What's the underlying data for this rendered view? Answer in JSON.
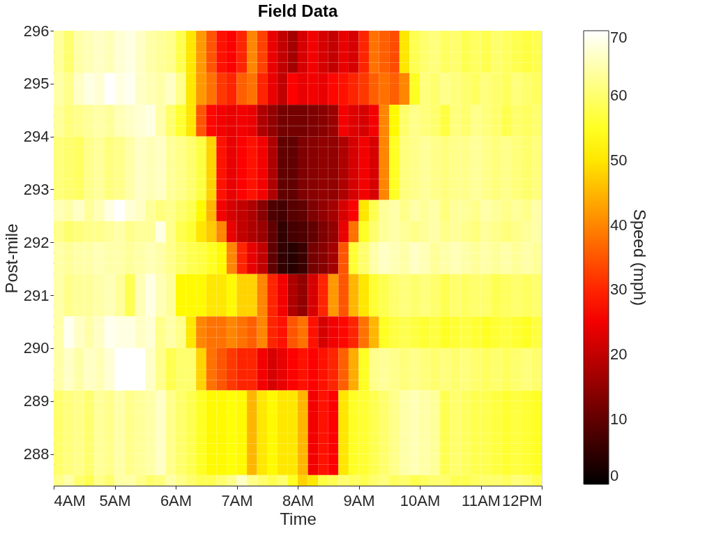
{
  "chart_data": {
    "type": "heatmap",
    "title": "Field Data",
    "xlabel": "Time",
    "ylabel": "Post-mile",
    "clabel": "Speed (mph)",
    "cells": [
      [
        63,
        60,
        64,
        65,
        66,
        65,
        67,
        68,
        66,
        64,
        63,
        62,
        58,
        50,
        42,
        35,
        28,
        26,
        30,
        40,
        33,
        24,
        20,
        17,
        22,
        25,
        22,
        20,
        24,
        22,
        30,
        38,
        36,
        34,
        50,
        58,
        60,
        61,
        59,
        60,
        58,
        59,
        58,
        60,
        59,
        58,
        57,
        58
      ],
      [
        63,
        60,
        64,
        65,
        66,
        65,
        67,
        68,
        66,
        64,
        63,
        62,
        58,
        50,
        42,
        35,
        28,
        26,
        30,
        40,
        33,
        24,
        20,
        17,
        22,
        25,
        22,
        20,
        24,
        22,
        30,
        38,
        36,
        34,
        50,
        58,
        60,
        61,
        59,
        60,
        58,
        59,
        58,
        60,
        59,
        58,
        57,
        58
      ],
      [
        63,
        60,
        64,
        65,
        66,
        65,
        67,
        68,
        66,
        64,
        63,
        62,
        58,
        50,
        42,
        35,
        28,
        26,
        30,
        40,
        33,
        24,
        20,
        17,
        22,
        25,
        22,
        20,
        24,
        22,
        30,
        38,
        36,
        34,
        50,
        58,
        60,
        61,
        59,
        60,
        58,
        59,
        58,
        60,
        59,
        58,
        57,
        58
      ],
      [
        63,
        60,
        64,
        65,
        66,
        65,
        67,
        68,
        66,
        64,
        63,
        62,
        58,
        50,
        42,
        35,
        28,
        26,
        30,
        40,
        33,
        24,
        20,
        17,
        22,
        25,
        22,
        20,
        24,
        22,
        30,
        38,
        36,
        34,
        50,
        58,
        60,
        61,
        59,
        60,
        58,
        59,
        58,
        60,
        59,
        58,
        57,
        58
      ],
      [
        64,
        62,
        66,
        68,
        67,
        70,
        68,
        69,
        66,
        65,
        64,
        66,
        62,
        50,
        42,
        38,
        32,
        30,
        36,
        38,
        30,
        24,
        20,
        26,
        24,
        25,
        24,
        27,
        28,
        30,
        32,
        36,
        38,
        36,
        40,
        55,
        61,
        60,
        62,
        61,
        60,
        59,
        61,
        60,
        59,
        61,
        60,
        59
      ],
      [
        64,
        62,
        66,
        68,
        67,
        70,
        68,
        69,
        66,
        65,
        64,
        66,
        62,
        50,
        42,
        38,
        32,
        30,
        36,
        38,
        30,
        24,
        20,
        26,
        24,
        25,
        24,
        27,
        28,
        30,
        32,
        36,
        38,
        36,
        40,
        55,
        61,
        60,
        62,
        61,
        60,
        59,
        61,
        60,
        59,
        61,
        60,
        59
      ],
      [
        64,
        62,
        66,
        68,
        67,
        70,
        68,
        69,
        66,
        65,
        64,
        66,
        62,
        50,
        42,
        38,
        32,
        30,
        36,
        38,
        30,
        24,
        20,
        26,
        24,
        25,
        24,
        27,
        28,
        30,
        32,
        36,
        38,
        36,
        40,
        55,
        61,
        60,
        62,
        61,
        60,
        59,
        61,
        60,
        59,
        61,
        60,
        59
      ],
      [
        63,
        61,
        62,
        63,
        64,
        63,
        65,
        66,
        67,
        68,
        64,
        60,
        56,
        50,
        35,
        27,
        25,
        24,
        25,
        24,
        18,
        15,
        12,
        12,
        12,
        13,
        14,
        16,
        25,
        23,
        22,
        25,
        40,
        52,
        60,
        62,
        61,
        60,
        57,
        61,
        60,
        62,
        61,
        60,
        58,
        60,
        59,
        60
      ],
      [
        63,
        61,
        62,
        63,
        64,
        63,
        65,
        66,
        67,
        68,
        64,
        60,
        56,
        50,
        35,
        27,
        25,
        24,
        25,
        24,
        18,
        15,
        12,
        12,
        12,
        13,
        14,
        16,
        25,
        23,
        22,
        25,
        40,
        52,
        60,
        62,
        61,
        60,
        57,
        61,
        60,
        62,
        61,
        60,
        58,
        60,
        59,
        60
      ],
      [
        63,
        61,
        62,
        63,
        64,
        63,
        65,
        66,
        67,
        68,
        64,
        60,
        56,
        50,
        35,
        27,
        25,
        24,
        25,
        24,
        18,
        15,
        12,
        12,
        12,
        13,
        14,
        16,
        25,
        23,
        22,
        25,
        40,
        52,
        60,
        62,
        61,
        60,
        57,
        61,
        60,
        62,
        61,
        60,
        58,
        60,
        59,
        60
      ],
      [
        61,
        60,
        59,
        62,
        63,
        61,
        62,
        64,
        66,
        65,
        66,
        63,
        62,
        60,
        57,
        48,
        28,
        24,
        26,
        28,
        25,
        18,
        10,
        10,
        13,
        14,
        15,
        15,
        18,
        22,
        25,
        22,
        40,
        55,
        61,
        62,
        63,
        62,
        61,
        62,
        62,
        63,
        62,
        61,
        62,
        61,
        60,
        61
      ],
      [
        61,
        60,
        59,
        62,
        63,
        61,
        62,
        64,
        66,
        65,
        66,
        63,
        62,
        60,
        57,
        48,
        28,
        24,
        26,
        28,
        25,
        18,
        10,
        10,
        13,
        14,
        15,
        15,
        18,
        22,
        25,
        22,
        40,
        55,
        61,
        62,
        63,
        62,
        61,
        62,
        62,
        63,
        62,
        61,
        62,
        61,
        60,
        61
      ],
      [
        61,
        60,
        59,
        62,
        63,
        61,
        62,
        64,
        66,
        65,
        66,
        63,
        62,
        60,
        57,
        48,
        28,
        24,
        26,
        28,
        25,
        18,
        10,
        10,
        13,
        14,
        15,
        15,
        18,
        22,
        25,
        22,
        40,
        55,
        61,
        62,
        63,
        62,
        61,
        62,
        62,
        63,
        62,
        61,
        62,
        61,
        60,
        61
      ],
      [
        61,
        60,
        59,
        62,
        63,
        61,
        62,
        64,
        66,
        65,
        66,
        63,
        62,
        60,
        57,
        48,
        28,
        24,
        26,
        28,
        25,
        18,
        10,
        10,
        13,
        14,
        15,
        15,
        18,
        22,
        25,
        22,
        40,
        55,
        61,
        62,
        63,
        62,
        61,
        62,
        62,
        63,
        62,
        61,
        62,
        61,
        60,
        61
      ],
      [
        61,
        60,
        59,
        62,
        63,
        61,
        62,
        64,
        66,
        65,
        66,
        63,
        62,
        60,
        57,
        48,
        28,
        24,
        26,
        28,
        25,
        18,
        10,
        10,
        13,
        14,
        15,
        15,
        18,
        22,
        25,
        22,
        40,
        55,
        61,
        62,
        63,
        62,
        61,
        62,
        62,
        63,
        62,
        61,
        62,
        61,
        60,
        61
      ],
      [
        61,
        60,
        59,
        62,
        63,
        61,
        62,
        64,
        66,
        65,
        66,
        63,
        62,
        60,
        57,
        48,
        28,
        24,
        26,
        28,
        25,
        18,
        10,
        10,
        13,
        14,
        15,
        15,
        18,
        22,
        25,
        22,
        40,
        55,
        61,
        62,
        63,
        62,
        61,
        62,
        62,
        63,
        62,
        61,
        62,
        61,
        60,
        61
      ],
      [
        65,
        64,
        66,
        63,
        65,
        68,
        70,
        67,
        66,
        63,
        61,
        62,
        60,
        58,
        52,
        45,
        25,
        22,
        20,
        18,
        14,
        8,
        7,
        9,
        10,
        13,
        15,
        17,
        22,
        26,
        50,
        58,
        63,
        64,
        62,
        64,
        63,
        64,
        61,
        63,
        63,
        62,
        64,
        63,
        62,
        63,
        62,
        64
      ],
      [
        65,
        64,
        66,
        63,
        65,
        68,
        70,
        67,
        66,
        63,
        61,
        62,
        60,
        58,
        52,
        45,
        25,
        22,
        20,
        18,
        14,
        8,
        7,
        9,
        10,
        13,
        15,
        17,
        22,
        26,
        50,
        58,
        63,
        64,
        62,
        64,
        63,
        64,
        61,
        63,
        63,
        62,
        64,
        63,
        62,
        63,
        62,
        64
      ],
      [
        62,
        60,
        61,
        62,
        62,
        63,
        64,
        62,
        63,
        63,
        68,
        62,
        58,
        56,
        50,
        47,
        40,
        24,
        20,
        18,
        16,
        10,
        5,
        7,
        8,
        10,
        13,
        15,
        24,
        38,
        55,
        60,
        63,
        64,
        63,
        62,
        63,
        64,
        62,
        63,
        62,
        61,
        63,
        62,
        61,
        62,
        63,
        64
      ],
      [
        62,
        60,
        61,
        62,
        62,
        63,
        64,
        62,
        63,
        63,
        68,
        62,
        58,
        56,
        50,
        47,
        40,
        24,
        20,
        18,
        16,
        10,
        5,
        7,
        8,
        10,
        13,
        15,
        24,
        38,
        55,
        60,
        63,
        64,
        63,
        62,
        63,
        64,
        62,
        63,
        62,
        61,
        63,
        62,
        61,
        62,
        63,
        64
      ],
      [
        64,
        63,
        64,
        64,
        65,
        64,
        64,
        63,
        64,
        65,
        64,
        62,
        60,
        58,
        57,
        55,
        52,
        40,
        30,
        24,
        20,
        10,
        5,
        4,
        6,
        12,
        14,
        17,
        35,
        56,
        60,
        64,
        66,
        65,
        64,
        66,
        65,
        63,
        64,
        65,
        64,
        63,
        64,
        63,
        64,
        63,
        64,
        63
      ],
      [
        64,
        63,
        64,
        64,
        65,
        64,
        64,
        63,
        64,
        65,
        64,
        62,
        60,
        58,
        57,
        55,
        52,
        40,
        30,
        24,
        20,
        10,
        5,
        4,
        6,
        12,
        14,
        17,
        35,
        56,
        60,
        64,
        66,
        65,
        64,
        66,
        65,
        63,
        64,
        65,
        64,
        63,
        64,
        63,
        64,
        63,
        64,
        63
      ],
      [
        64,
        63,
        64,
        64,
        65,
        64,
        64,
        63,
        64,
        65,
        64,
        62,
        60,
        58,
        57,
        55,
        52,
        40,
        30,
        24,
        20,
        10,
        5,
        4,
        6,
        12,
        14,
        17,
        35,
        56,
        60,
        64,
        66,
        65,
        64,
        66,
        65,
        63,
        64,
        65,
        64,
        63,
        64,
        63,
        64,
        63,
        64,
        63
      ],
      [
        64,
        62,
        63,
        63,
        64,
        65,
        63,
        58,
        65,
        68,
        65,
        63,
        52,
        52,
        52,
        50,
        50,
        52,
        48,
        48,
        40,
        30,
        25,
        18,
        15,
        22,
        30,
        42,
        35,
        45,
        50,
        56,
        58,
        60,
        61,
        60,
        61,
        60,
        58,
        60,
        59,
        60,
        60,
        58,
        59,
        60,
        59,
        60
      ],
      [
        64,
        62,
        63,
        63,
        64,
        65,
        63,
        58,
        65,
        68,
        65,
        63,
        52,
        52,
        52,
        50,
        50,
        52,
        48,
        48,
        40,
        30,
        25,
        18,
        15,
        22,
        30,
        42,
        35,
        45,
        50,
        56,
        58,
        60,
        61,
        60,
        61,
        60,
        58,
        60,
        59,
        60,
        60,
        58,
        59,
        60,
        59,
        60
      ],
      [
        64,
        62,
        63,
        63,
        64,
        65,
        63,
        58,
        65,
        68,
        65,
        63,
        52,
        52,
        52,
        50,
        50,
        52,
        48,
        48,
        40,
        30,
        25,
        18,
        15,
        22,
        30,
        42,
        35,
        45,
        50,
        56,
        58,
        60,
        61,
        60,
        61,
        60,
        58,
        60,
        59,
        60,
        60,
        58,
        59,
        60,
        59,
        60
      ],
      [
        64,
        62,
        63,
        63,
        64,
        65,
        63,
        58,
        65,
        68,
        65,
        63,
        52,
        52,
        52,
        50,
        50,
        52,
        48,
        48,
        40,
        30,
        25,
        18,
        15,
        22,
        30,
        42,
        35,
        45,
        50,
        56,
        58,
        60,
        61,
        60,
        61,
        60,
        58,
        60,
        59,
        60,
        60,
        58,
        59,
        60,
        59,
        60
      ],
      [
        64,
        69,
        66,
        64,
        66,
        69,
        68,
        68,
        66,
        67,
        62,
        64,
        62,
        50,
        40,
        38,
        38,
        40,
        38,
        36,
        40,
        30,
        28,
        35,
        38,
        28,
        22,
        25,
        27,
        30,
        38,
        45,
        55,
        57,
        58,
        57,
        56,
        57,
        55,
        56,
        57,
        56,
        55,
        56,
        57,
        56,
        55,
        57
      ],
      [
        64,
        69,
        66,
        64,
        66,
        69,
        68,
        68,
        66,
        67,
        62,
        64,
        62,
        50,
        40,
        38,
        38,
        40,
        38,
        36,
        40,
        30,
        28,
        35,
        38,
        28,
        22,
        25,
        27,
        30,
        38,
        45,
        55,
        57,
        58,
        57,
        56,
        57,
        55,
        56,
        57,
        56,
        55,
        56,
        57,
        56,
        55,
        57
      ],
      [
        64,
        69,
        66,
        64,
        66,
        69,
        68,
        68,
        66,
        67,
        62,
        64,
        62,
        50,
        40,
        38,
        38,
        40,
        38,
        36,
        40,
        30,
        28,
        35,
        38,
        28,
        22,
        25,
        27,
        30,
        38,
        45,
        55,
        57,
        58,
        57,
        56,
        57,
        55,
        56,
        57,
        56,
        55,
        56,
        57,
        56,
        55,
        57
      ],
      [
        64,
        66,
        64,
        66,
        65,
        67,
        70,
        70,
        70,
        66,
        62,
        58,
        60,
        60,
        48,
        38,
        35,
        32,
        30,
        30,
        25,
        22,
        24,
        26,
        28,
        26,
        28,
        30,
        36,
        44,
        55,
        62,
        63,
        62,
        61,
        62,
        61,
        60,
        61,
        60,
        61,
        60,
        59,
        60,
        59,
        60,
        61,
        60
      ],
      [
        64,
        66,
        64,
        66,
        65,
        67,
        70,
        70,
        70,
        66,
        62,
        58,
        60,
        60,
        48,
        38,
        35,
        32,
        30,
        30,
        25,
        22,
        24,
        26,
        28,
        26,
        28,
        30,
        36,
        44,
        55,
        62,
        63,
        62,
        61,
        62,
        61,
        60,
        61,
        60,
        61,
        60,
        59,
        60,
        59,
        60,
        61,
        60
      ],
      [
        64,
        66,
        64,
        66,
        65,
        67,
        70,
        70,
        70,
        66,
        62,
        58,
        60,
        60,
        48,
        38,
        35,
        32,
        30,
        30,
        25,
        22,
        24,
        26,
        28,
        26,
        28,
        30,
        36,
        44,
        55,
        62,
        63,
        62,
        61,
        62,
        61,
        60,
        61,
        60,
        61,
        60,
        59,
        60,
        59,
        60,
        61,
        60
      ],
      [
        64,
        66,
        64,
        66,
        65,
        67,
        70,
        70,
        70,
        66,
        62,
        58,
        60,
        60,
        48,
        38,
        35,
        32,
        30,
        30,
        25,
        22,
        24,
        26,
        28,
        26,
        28,
        30,
        36,
        44,
        55,
        62,
        63,
        62,
        61,
        62,
        61,
        60,
        61,
        60,
        61,
        60,
        59,
        60,
        59,
        60,
        61,
        60
      ],
      [
        60,
        61,
        62,
        60,
        63,
        62,
        64,
        62,
        63,
        64,
        66,
        62,
        60,
        58,
        55,
        52,
        52,
        53,
        52,
        45,
        50,
        52,
        50,
        50,
        45,
        25,
        28,
        26,
        50,
        55,
        56,
        58,
        60,
        62,
        64,
        65,
        64,
        63,
        58,
        60,
        59,
        58,
        58,
        57,
        56,
        57,
        56,
        55
      ],
      [
        60,
        61,
        62,
        60,
        63,
        62,
        64,
        62,
        63,
        64,
        66,
        62,
        60,
        58,
        55,
        52,
        52,
        53,
        52,
        45,
        50,
        52,
        50,
        50,
        45,
        25,
        28,
        26,
        50,
        55,
        56,
        58,
        60,
        62,
        64,
        65,
        64,
        63,
        58,
        60,
        59,
        58,
        58,
        57,
        56,
        57,
        56,
        55
      ],
      [
        60,
        61,
        62,
        60,
        63,
        62,
        64,
        62,
        63,
        64,
        66,
        62,
        60,
        58,
        55,
        52,
        52,
        53,
        52,
        45,
        50,
        52,
        50,
        50,
        45,
        25,
        28,
        26,
        50,
        55,
        56,
        58,
        60,
        62,
        64,
        65,
        64,
        63,
        58,
        60,
        59,
        58,
        58,
        57,
        56,
        57,
        56,
        55
      ],
      [
        60,
        61,
        62,
        60,
        63,
        62,
        64,
        62,
        63,
        64,
        66,
        62,
        60,
        58,
        55,
        52,
        52,
        53,
        52,
        45,
        50,
        52,
        50,
        50,
        45,
        25,
        28,
        26,
        50,
        55,
        56,
        58,
        60,
        62,
        64,
        65,
        64,
        63,
        58,
        60,
        59,
        58,
        58,
        57,
        56,
        57,
        56,
        55
      ],
      [
        60,
        61,
        62,
        60,
        63,
        62,
        64,
        62,
        63,
        64,
        66,
        62,
        60,
        58,
        55,
        52,
        52,
        53,
        52,
        45,
        50,
        52,
        50,
        50,
        45,
        25,
        28,
        26,
        50,
        55,
        56,
        58,
        60,
        62,
        64,
        65,
        64,
        63,
        58,
        60,
        59,
        58,
        58,
        57,
        56,
        57,
        56,
        55
      ],
      [
        60,
        61,
        62,
        60,
        63,
        62,
        64,
        62,
        63,
        64,
        66,
        62,
        60,
        58,
        55,
        52,
        52,
        53,
        52,
        45,
        50,
        52,
        50,
        50,
        45,
        25,
        28,
        26,
        50,
        55,
        56,
        58,
        60,
        62,
        64,
        65,
        64,
        63,
        58,
        60,
        59,
        58,
        58,
        57,
        56,
        57,
        56,
        55
      ],
      [
        60,
        61,
        62,
        60,
        63,
        62,
        64,
        62,
        63,
        64,
        66,
        62,
        60,
        58,
        55,
        52,
        52,
        53,
        52,
        45,
        50,
        52,
        50,
        50,
        45,
        25,
        28,
        26,
        50,
        55,
        56,
        58,
        60,
        62,
        64,
        65,
        64,
        63,
        58,
        60,
        59,
        58,
        58,
        57,
        56,
        57,
        56,
        55
      ],
      [
        60,
        61,
        62,
        60,
        63,
        62,
        64,
        62,
        63,
        64,
        66,
        62,
        60,
        58,
        55,
        52,
        52,
        53,
        52,
        45,
        50,
        52,
        50,
        50,
        45,
        25,
        28,
        26,
        50,
        55,
        56,
        58,
        60,
        62,
        64,
        65,
        64,
        63,
        58,
        60,
        59,
        58,
        58,
        57,
        56,
        57,
        56,
        55
      ],
      [
        62,
        64,
        60,
        58,
        62,
        60,
        64,
        64,
        62,
        60,
        61,
        64,
        62,
        60,
        58,
        58,
        60,
        62,
        66,
        62,
        60,
        58,
        60,
        55,
        48,
        50,
        57,
        58,
        60,
        59,
        58,
        60,
        61,
        59,
        60,
        58,
        59,
        60,
        60,
        58,
        58,
        59,
        60,
        60,
        59,
        61,
        60,
        58
      ]
    ],
    "xlim": [
      4,
      12
    ],
    "ylim": [
      287.4,
      296
    ],
    "xticks": [
      {
        "value": 4,
        "label": "4AM"
      },
      {
        "value": 5,
        "label": "5AM"
      },
      {
        "value": 6,
        "label": "6AM"
      },
      {
        "value": 7,
        "label": "7AM"
      },
      {
        "value": 8,
        "label": "8AM"
      },
      {
        "value": 9,
        "label": "9AM"
      },
      {
        "value": 10,
        "label": "10AM"
      },
      {
        "value": 11,
        "label": "11AM"
      },
      {
        "value": 12,
        "label": "12PM"
      }
    ],
    "yticks": [
      288,
      289,
      290,
      291,
      292,
      293,
      294,
      295,
      296
    ],
    "clim": [
      0,
      70
    ],
    "cticks": [
      0,
      10,
      20,
      30,
      40,
      50,
      60,
      70
    ],
    "grid": false
  }
}
